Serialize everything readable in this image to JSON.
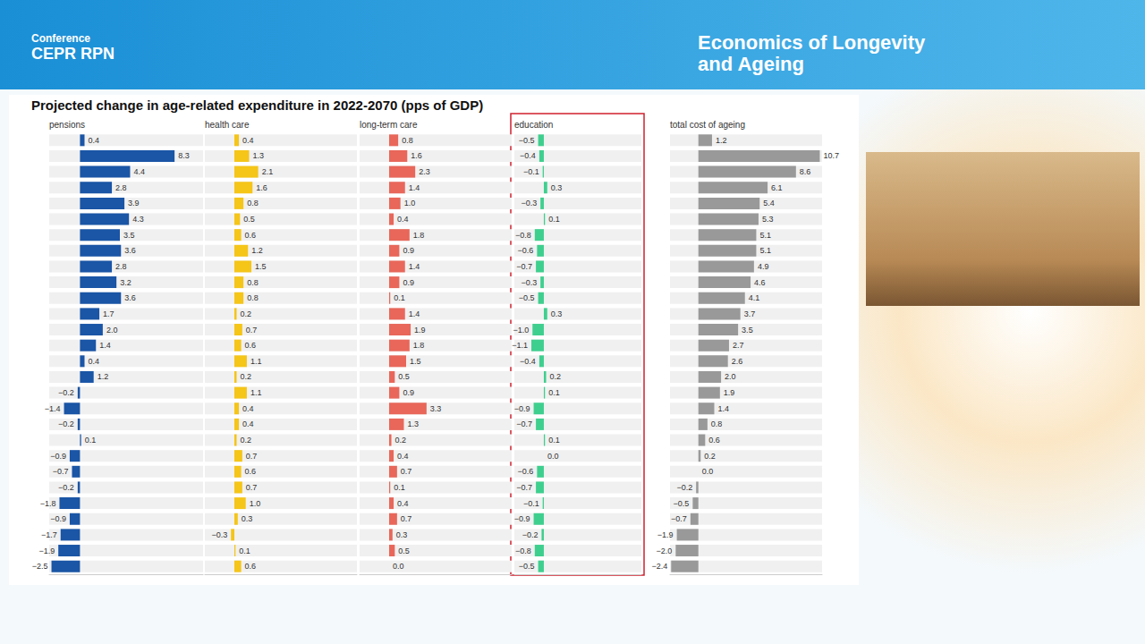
{
  "header": {
    "conference": "Conference",
    "organiser": "CEPR RPN",
    "event": "Economics of Longevity and Ageing"
  },
  "title": "Projected change in age-related expenditure in 2022-2070 (pps of GDP)",
  "chart_data": [
    {
      "type": "bar",
      "title": "pensions",
      "orientation": "horizontal",
      "data_labels": true,
      "tick_labels": false,
      "grid": false,
      "color": "#1a55a6",
      "categories": [
        null,
        null,
        null,
        null,
        null,
        null,
        null,
        null,
        null,
        null,
        null,
        null,
        null,
        null,
        null,
        null,
        null,
        null,
        null,
        null,
        null,
        null,
        null,
        null,
        null,
        null,
        null,
        null
      ],
      "xlim": [
        -2.7,
        10.8
      ],
      "values": [
        0.4,
        8.3,
        4.4,
        2.8,
        3.9,
        4.3,
        3.5,
        3.6,
        2.8,
        3.2,
        3.6,
        1.7,
        2.0,
        1.4,
        0.4,
        1.2,
        -0.2,
        -1.4,
        -0.2,
        0.1,
        -0.9,
        -0.7,
        -0.2,
        -1.8,
        -0.9,
        -1.7,
        -1.9,
        -2.5
      ],
      "value_labels": [
        "0.4",
        "8.3",
        "4.4",
        "2.8",
        "3.9",
        "4.3",
        "3.5",
        "3.6",
        "2.8",
        "3.2",
        "3.6",
        "1.7",
        "2.0",
        "1.4",
        "0.4",
        "1.2",
        "−0.2",
        "−1.4",
        "−0.2",
        "0.1",
        "−0.9",
        "−0.7",
        "−0.2",
        "−1.8",
        "−0.9",
        "−1.7",
        "−1.9",
        "−2.5"
      ]
    },
    {
      "type": "bar",
      "title": "health care",
      "orientation": "horizontal",
      "data_labels": true,
      "tick_labels": false,
      "grid": false,
      "color": "#f5c518",
      "categories": [
        null,
        null,
        null,
        null,
        null,
        null,
        null,
        null,
        null,
        null,
        null,
        null,
        null,
        null,
        null,
        null,
        null,
        null,
        null,
        null,
        null,
        null,
        null,
        null,
        null,
        null,
        null,
        null
      ],
      "xlim": [
        -2.6,
        10.8
      ],
      "values": [
        0.4,
        1.3,
        2.1,
        1.6,
        0.8,
        0.5,
        0.6,
        1.2,
        1.5,
        0.8,
        0.8,
        0.2,
        0.7,
        0.6,
        1.1,
        0.2,
        1.1,
        0.4,
        0.4,
        0.2,
        0.7,
        0.6,
        0.7,
        1.0,
        0.3,
        -0.3,
        0.1,
        0.6
      ],
      "value_labels": [
        "0.4",
        "1.3",
        "2.1",
        "1.6",
        "0.8",
        "0.5",
        "0.6",
        "1.2",
        "1.5",
        "0.8",
        "0.8",
        "0.2",
        "0.7",
        "0.6",
        "1.1",
        "0.2",
        "1.1",
        "0.4",
        "0.4",
        "0.2",
        "0.7",
        "0.6",
        "0.7",
        "1.0",
        "0.3",
        "−0.3",
        "0.1",
        "0.6"
      ]
    },
    {
      "type": "bar",
      "title": "long-term care",
      "orientation": "horizontal",
      "data_labels": true,
      "tick_labels": false,
      "grid": false,
      "color": "#e8675a",
      "categories": [
        null,
        null,
        null,
        null,
        null,
        null,
        null,
        null,
        null,
        null,
        null,
        null,
        null,
        null,
        null,
        null,
        null,
        null,
        null,
        null,
        null,
        null,
        null,
        null,
        null,
        null,
        null,
        null
      ],
      "xlim": [
        -2.6,
        10.8
      ],
      "values": [
        0.8,
        1.6,
        2.3,
        1.4,
        1.0,
        0.4,
        1.8,
        0.9,
        1.4,
        0.9,
        0.1,
        1.4,
        1.9,
        1.8,
        1.5,
        0.5,
        0.9,
        3.3,
        1.3,
        0.2,
        0.4,
        0.7,
        0.1,
        0.4,
        0.7,
        0.3,
        0.5,
        0.0
      ],
      "value_labels": [
        "0.8",
        "1.6",
        "2.3",
        "1.4",
        "1.0",
        "0.4",
        "1.8",
        "0.9",
        "1.4",
        "0.9",
        "0.1",
        "1.4",
        "1.9",
        "1.8",
        "1.5",
        "0.5",
        "0.9",
        "3.3",
        "1.3",
        "0.2",
        "0.4",
        "0.7",
        "0.1",
        "0.4",
        "0.7",
        "0.3",
        "0.5",
        "0.0"
      ]
    },
    {
      "type": "bar",
      "title": "education",
      "orientation": "horizontal",
      "data_labels": true,
      "tick_labels": false,
      "grid": false,
      "color": "#3ecf8e",
      "categories": [
        null,
        null,
        null,
        null,
        null,
        null,
        null,
        null,
        null,
        null,
        null,
        null,
        null,
        null,
        null,
        null,
        null,
        null,
        null,
        null,
        null,
        null,
        null,
        null,
        null,
        null,
        null,
        null
      ],
      "xlim": [
        -2.6,
        8.6
      ],
      "values": [
        -0.5,
        -0.4,
        -0.1,
        0.3,
        -0.3,
        0.1,
        -0.8,
        -0.6,
        -0.7,
        -0.3,
        -0.5,
        0.3,
        -1.0,
        -1.1,
        -0.4,
        0.2,
        0.1,
        -0.9,
        -0.7,
        0.1,
        0.0,
        -0.6,
        -0.7,
        -0.1,
        -0.9,
        -0.2,
        -0.8,
        -0.5
      ],
      "value_labels": [
        "−0.5",
        "−0.4",
        "−0.1",
        "0.3",
        "−0.3",
        "0.1",
        "−0.8",
        "−0.6",
        "−0.7",
        "−0.3",
        "−0.5",
        "0.3",
        "−1.0",
        "−1.1",
        "−0.4",
        "0.2",
        "0.1",
        "−0.9",
        "−0.7",
        "0.1",
        "0.0",
        "−0.6",
        "−0.7",
        "−0.1",
        "−0.9",
        "−0.2",
        "−0.8",
        "−0.5"
      ]
    },
    {
      "type": "bar",
      "title": "total cost of ageing",
      "orientation": "horizontal",
      "data_labels": true,
      "tick_labels": false,
      "grid": false,
      "color": "#999999",
      "categories": [
        null,
        null,
        null,
        null,
        null,
        null,
        null,
        null,
        null,
        null,
        null,
        null,
        null,
        null,
        null,
        null,
        null,
        null,
        null,
        null,
        null,
        null,
        null,
        null,
        null,
        null,
        null,
        null
      ],
      "xlim": [
        -2.5,
        10.9
      ],
      "values": [
        1.2,
        10.7,
        8.6,
        6.1,
        5.4,
        5.3,
        5.1,
        5.1,
        4.9,
        4.6,
        4.1,
        3.7,
        3.5,
        2.7,
        2.6,
        2.0,
        1.9,
        1.4,
        0.8,
        0.6,
        0.2,
        0.0,
        -0.2,
        -0.5,
        -0.7,
        -1.9,
        -2.0,
        -2.4
      ],
      "value_labels": [
        "1.2",
        "10.7",
        "8.6",
        "6.1",
        "5.4",
        "5.3",
        "5.1",
        "5.1",
        "4.9",
        "4.6",
        "4.1",
        "3.7",
        "3.5",
        "2.7",
        "2.6",
        "2.0",
        "1.9",
        "1.4",
        "0.8",
        "0.6",
        "0.2",
        "0.0",
        "−0.2",
        "−0.5",
        "−0.7",
        "−1.9",
        "−2.0",
        "−2.4"
      ]
    }
  ]
}
